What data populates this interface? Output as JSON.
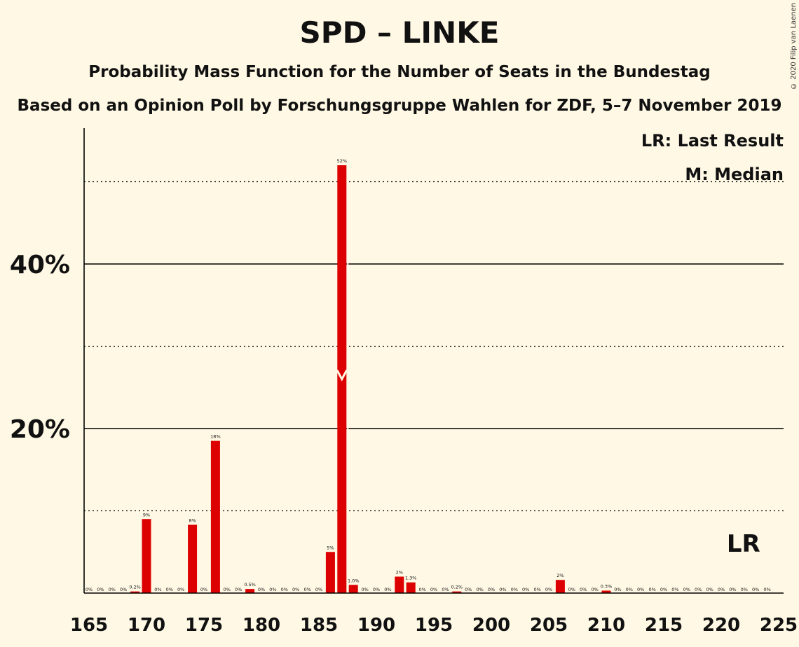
{
  "chart_data": {
    "type": "bar",
    "title": "SPD – LINKE",
    "subtitle": "Probability Mass Function for the Number of Seats in the Bundestag",
    "subtitle2": "Based on an Opinion Poll by Forschungsgruppe Wahlen for ZDF, 5–7 November 2019",
    "copyright": "© 2020 Filip van Laenen",
    "legend": {
      "last_result": "LR: Last Result",
      "median": "M: Median",
      "last_result_marker": "LR"
    },
    "bar_color": "#DD0000",
    "x": [
      165,
      166,
      167,
      168,
      169,
      170,
      171,
      172,
      173,
      174,
      175,
      176,
      177,
      178,
      179,
      180,
      181,
      182,
      183,
      184,
      185,
      186,
      187,
      188,
      189,
      190,
      191,
      192,
      193,
      194,
      195,
      196,
      197,
      198,
      199,
      200,
      201,
      202,
      203,
      204,
      205,
      206,
      207,
      208,
      209,
      210,
      211,
      212,
      213,
      214,
      215,
      216,
      217,
      218,
      219,
      220,
      221,
      222,
      223,
      224,
      225
    ],
    "values": [
      0,
      0,
      0,
      0,
      0.2,
      9,
      0,
      0,
      0,
      8.3,
      0,
      18.5,
      0,
      0,
      0.5,
      0,
      0,
      0,
      0,
      0,
      0,
      5,
      52,
      1.0,
      0,
      0,
      0,
      2,
      1.3,
      0,
      0,
      0,
      0.2,
      0,
      0,
      0,
      0,
      0,
      0,
      0,
      0,
      1.6,
      0,
      0,
      0,
      0.3,
      0,
      0,
      0,
      0,
      0,
      0,
      0,
      0,
      0,
      0,
      0,
      0,
      0,
      0,
      null
    ],
    "labels": [
      "0%",
      "0%",
      "0%",
      "0%",
      "0.2%",
      "9%",
      "0%",
      "0%",
      "0%",
      "8%",
      "0%",
      "18%",
      "0%",
      "0%",
      "0.5%",
      "0%",
      "0%",
      "0%",
      "0%",
      "0%",
      "0%",
      "5%",
      "52%",
      "1.0%",
      "0%",
      "0%",
      "0%",
      "2%",
      "1.3%",
      "0%",
      "0%",
      "0%",
      "0.2%",
      "0%",
      "0%",
      "0%",
      "0%",
      "0%",
      "0%",
      "0%",
      "0%",
      "2%",
      "0%",
      "0%",
      "0%",
      "0.3%",
      "0%",
      "0%",
      "0%",
      "0%",
      "0%",
      "0%",
      "0%",
      "0%",
      "0%",
      "0%",
      "0%",
      "0%",
      "0%",
      "0%",
      ""
    ],
    "x_ticks": [
      165,
      170,
      175,
      180,
      185,
      190,
      195,
      200,
      205,
      210,
      215,
      220,
      225
    ],
    "y_ticks": [
      {
        "value": 20,
        "label": "20%"
      },
      {
        "value": 40,
        "label": "40%"
      }
    ],
    "y_minor_gridlines": [
      10,
      30,
      50
    ],
    "ylim": [
      0,
      56
    ],
    "xlim": [
      165,
      225
    ],
    "median": 187,
    "last_result": 222
  }
}
